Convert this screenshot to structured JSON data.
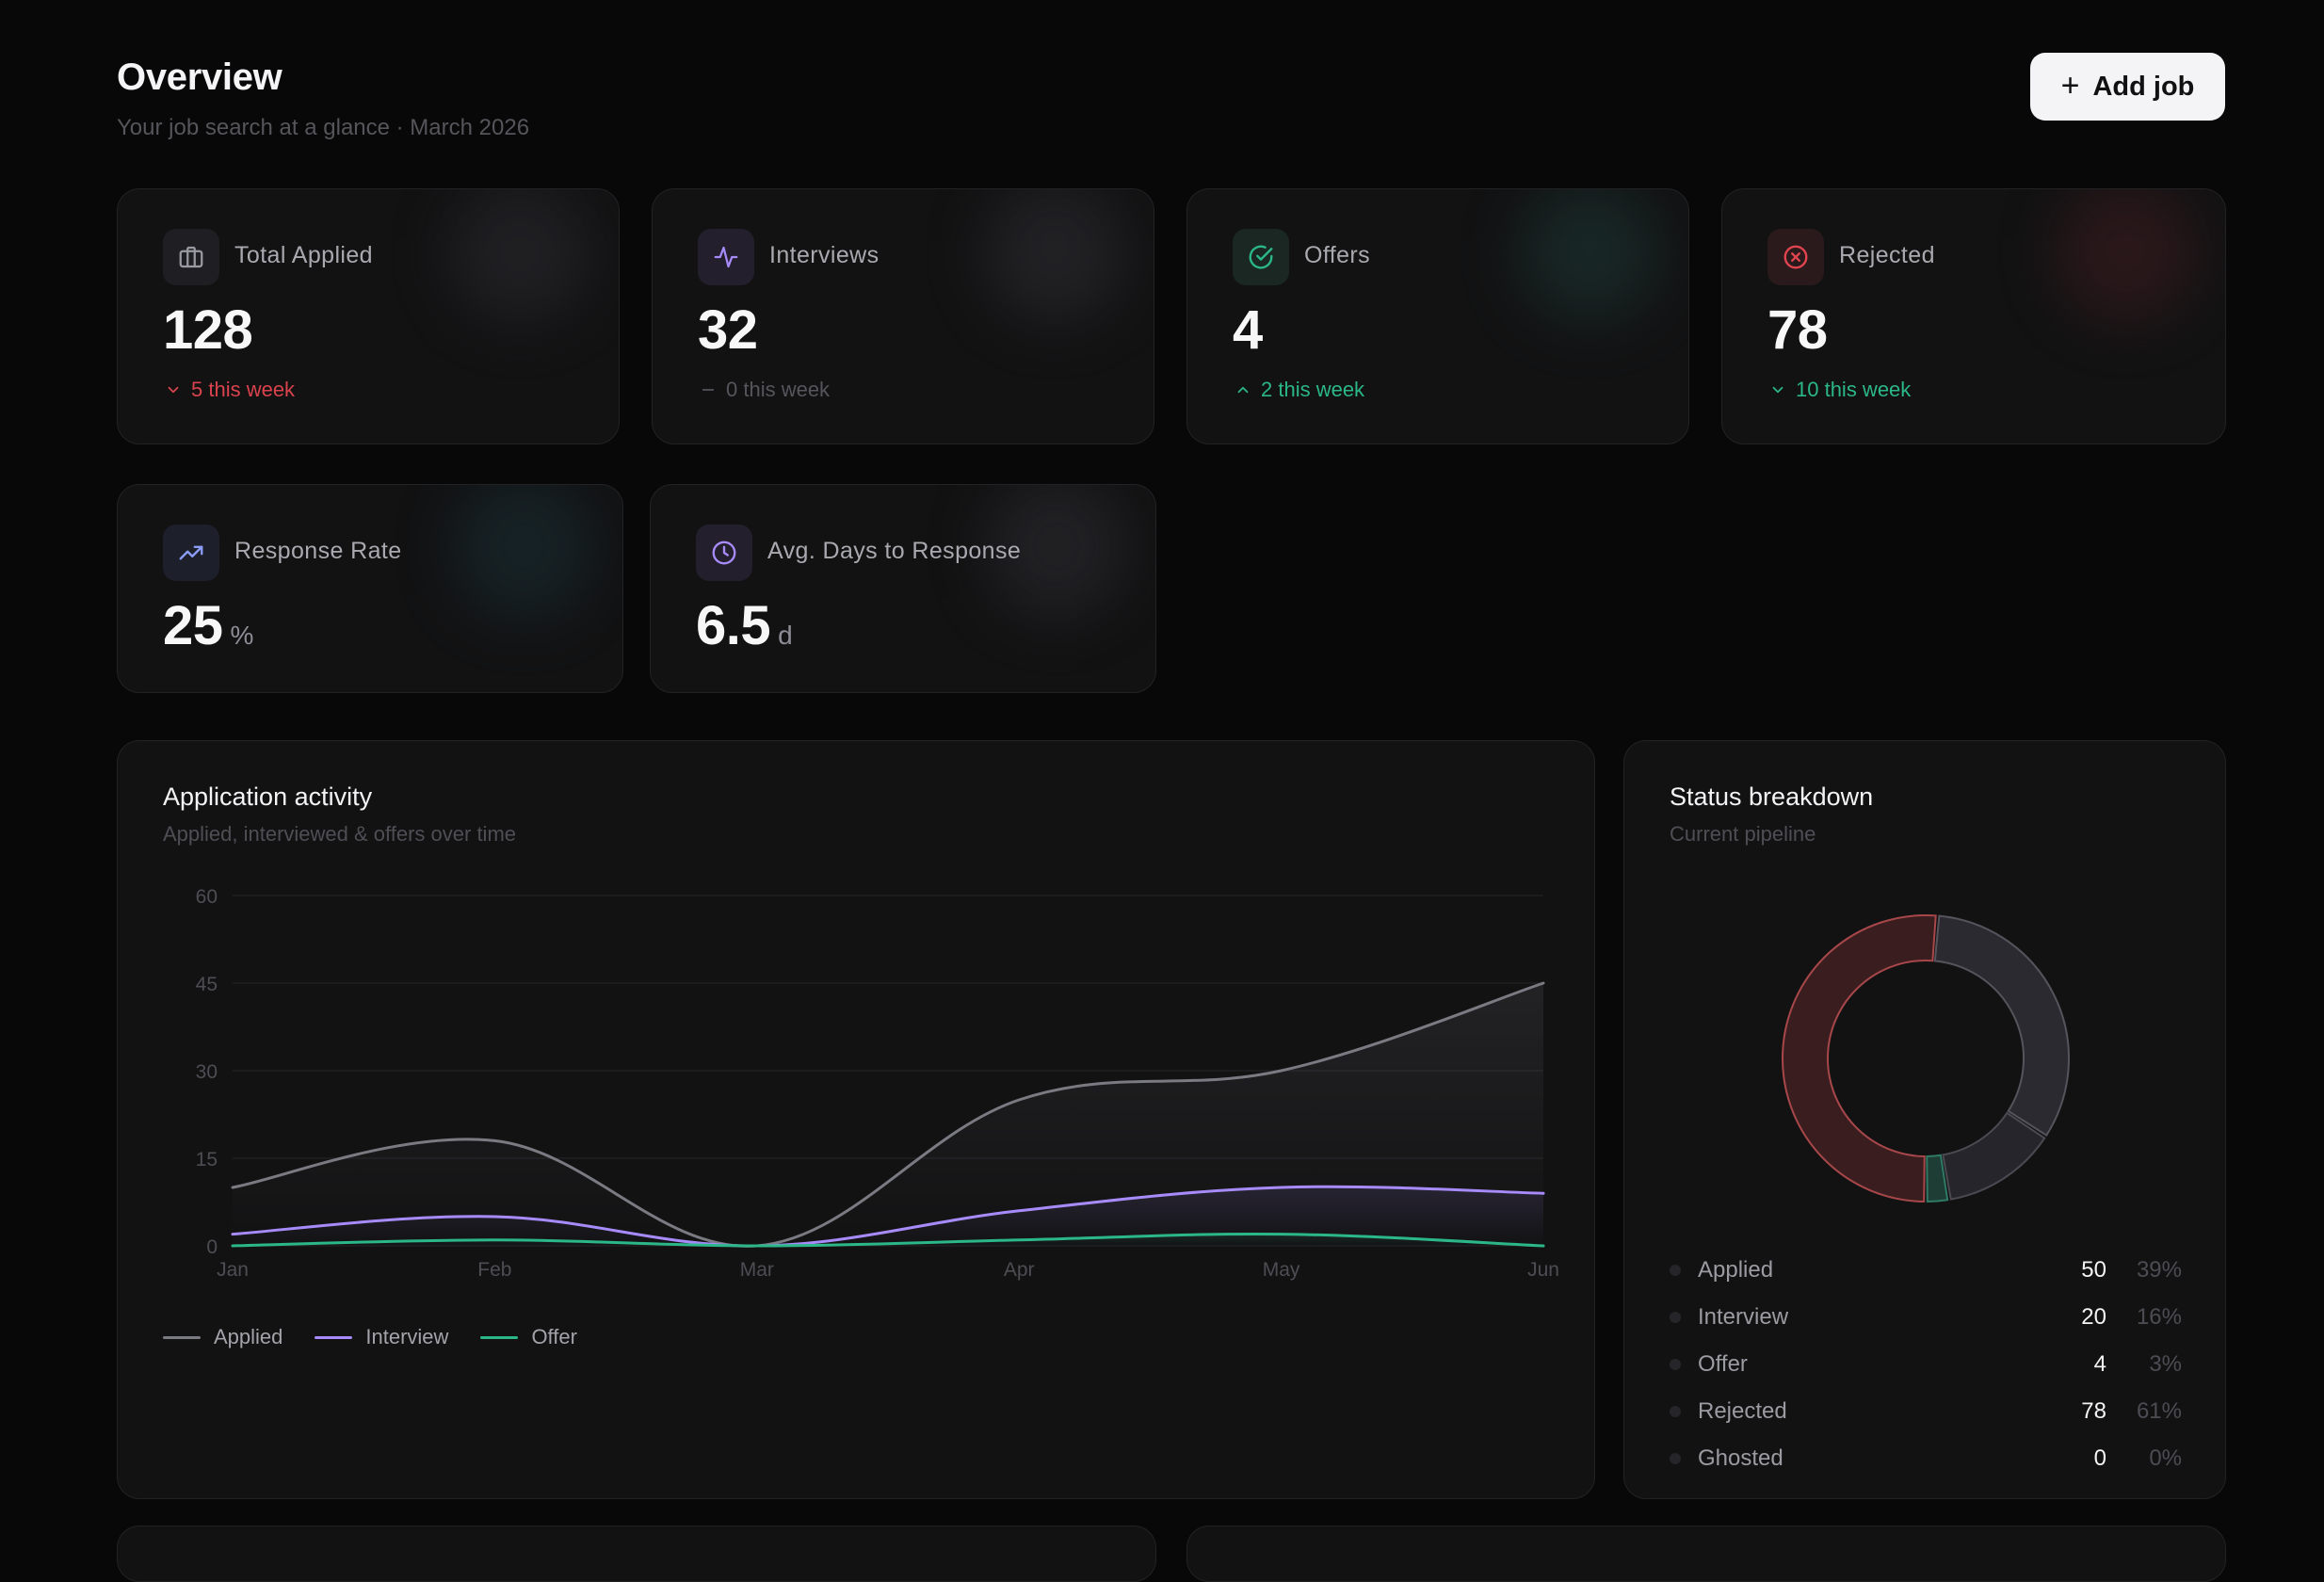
{
  "header": {
    "title": "Overview",
    "subtitle": "Your job search at a glance · March 2026",
    "add_button_label": "Add job",
    "add_button_icon": "plus-icon"
  },
  "stats": [
    {
      "label": "Total Applied",
      "value": "128",
      "unit": "",
      "delta": "5 this week",
      "trend": "down",
      "trend_color": "#d9434d",
      "icon": "briefcase-icon",
      "accent": "#9a9aa3"
    },
    {
      "label": "Interviews",
      "value": "32",
      "unit": "",
      "delta": "0 this week",
      "trend": "flat",
      "trend_color": "#55555c",
      "icon": "activity-icon",
      "accent": "#a78bfa"
    },
    {
      "label": "Offers",
      "value": "4",
      "unit": "",
      "delta": "2 this week",
      "trend": "up",
      "trend_color": "#2bb787",
      "icon": "check-circle-icon",
      "accent": "#2bb787"
    },
    {
      "label": "Rejected",
      "value": "78",
      "unit": "",
      "delta": "10 this week",
      "trend": "down",
      "trend_color": "#2bb787",
      "icon": "x-circle-icon",
      "accent": "#e0444f"
    },
    {
      "label": "Response Rate",
      "value": "25",
      "unit": "%",
      "icon": "trending-up-icon",
      "accent": "#8b9cf7"
    },
    {
      "label": "Avg. Days to Response",
      "value": "6.5",
      "unit": "d",
      "icon": "clock-icon",
      "accent": "#a78bfa"
    }
  ],
  "activity": {
    "title": "Application activity",
    "subtitle": "Applied, interviewed & offers over time"
  },
  "status": {
    "title": "Status breakdown",
    "subtitle": "Current pipeline",
    "rows": [
      {
        "name": "Applied",
        "count": "50",
        "pct": "39%"
      },
      {
        "name": "Interview",
        "count": "20",
        "pct": "16%"
      },
      {
        "name": "Offer",
        "count": "4",
        "pct": "3%"
      },
      {
        "name": "Rejected",
        "count": "78",
        "pct": "61%"
      },
      {
        "name": "Ghosted",
        "count": "0",
        "pct": "0%"
      }
    ]
  },
  "chart_data": [
    {
      "type": "area",
      "title": "Application activity",
      "categories": [
        "Jan",
        "Feb",
        "Mar",
        "Apr",
        "May",
        "Jun"
      ],
      "ylim": [
        0,
        60
      ],
      "yticks": [
        0,
        15,
        30,
        45,
        60
      ],
      "grid": true,
      "legend": "bottom-left",
      "series": [
        {
          "name": "Applied",
          "values": [
            10,
            18,
            0,
            25,
            30,
            45
          ],
          "color": "#7a7a82"
        },
        {
          "name": "Interview",
          "values": [
            2,
            5,
            0,
            6,
            10,
            9
          ],
          "color": "#a78bfa"
        },
        {
          "name": "Offer",
          "values": [
            0,
            1,
            0,
            1,
            2,
            0
          ],
          "color": "#2bb787"
        }
      ]
    },
    {
      "type": "pie",
      "title": "Status breakdown",
      "categories": [
        "Applied",
        "Interview",
        "Offer",
        "Rejected",
        "Ghosted"
      ],
      "values": [
        50,
        20,
        4,
        78,
        0
      ],
      "colors": [
        "#2b2a30",
        "#26252b",
        "#1d3d35",
        "#3a1e1f",
        "#222226"
      ]
    }
  ]
}
